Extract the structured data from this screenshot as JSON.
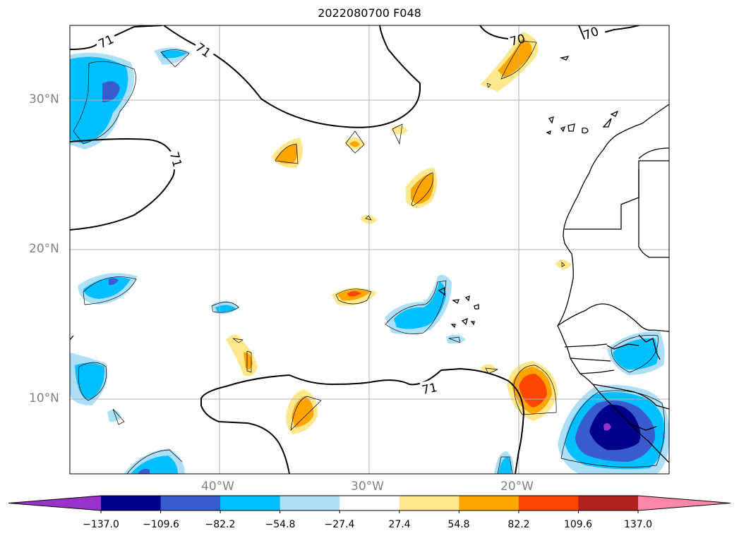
{
  "title": "2022080700 F048",
  "map": {
    "lat_labels": [
      "30°N",
      "20°N",
      "10°N"
    ],
    "lon_labels": [
      "40°W",
      "30°W",
      "20°W"
    ],
    "contour_labels": [
      "71",
      "71",
      "71",
      "70",
      "70",
      "71"
    ],
    "grid": true
  },
  "colorbar": {
    "ticks": [
      "−137.0",
      "−109.6",
      "−82.2",
      "−54.8",
      "−27.4",
      "27.4",
      "54.8",
      "82.2",
      "109.6",
      "137.0"
    ],
    "colors": [
      "#9932CC",
      "#00008B",
      "#3A5BCD",
      "#00BFFF",
      "#ADDFF8",
      "#FFFFFF",
      "#FFE88C",
      "#FFA500",
      "#FF4500",
      "#B22222",
      "#FF88AA"
    ],
    "extend": "both"
  }
}
